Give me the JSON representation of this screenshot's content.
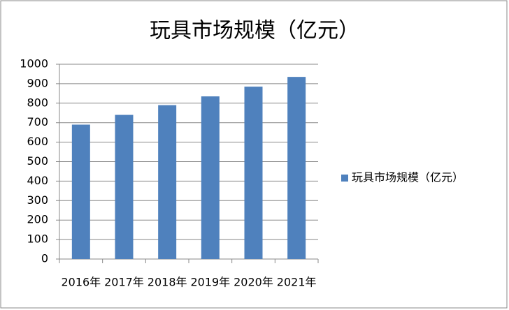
{
  "chart_data": {
    "type": "bar",
    "title": "玩具市场规模（亿元）",
    "categories": [
      "2016年",
      "2017年",
      "2018年",
      "2019年",
      "2020年",
      "2021年"
    ],
    "series": [
      {
        "name": "玩具市场规模（亿元）",
        "color": "#4f81bd",
        "values": [
          690,
          740,
          790,
          835,
          885,
          935
        ]
      }
    ],
    "ylim": [
      0,
      1000
    ],
    "yticks": [
      0,
      100,
      200,
      300,
      400,
      500,
      600,
      700,
      800,
      900,
      1000
    ],
    "grid": true,
    "legend": "right"
  }
}
